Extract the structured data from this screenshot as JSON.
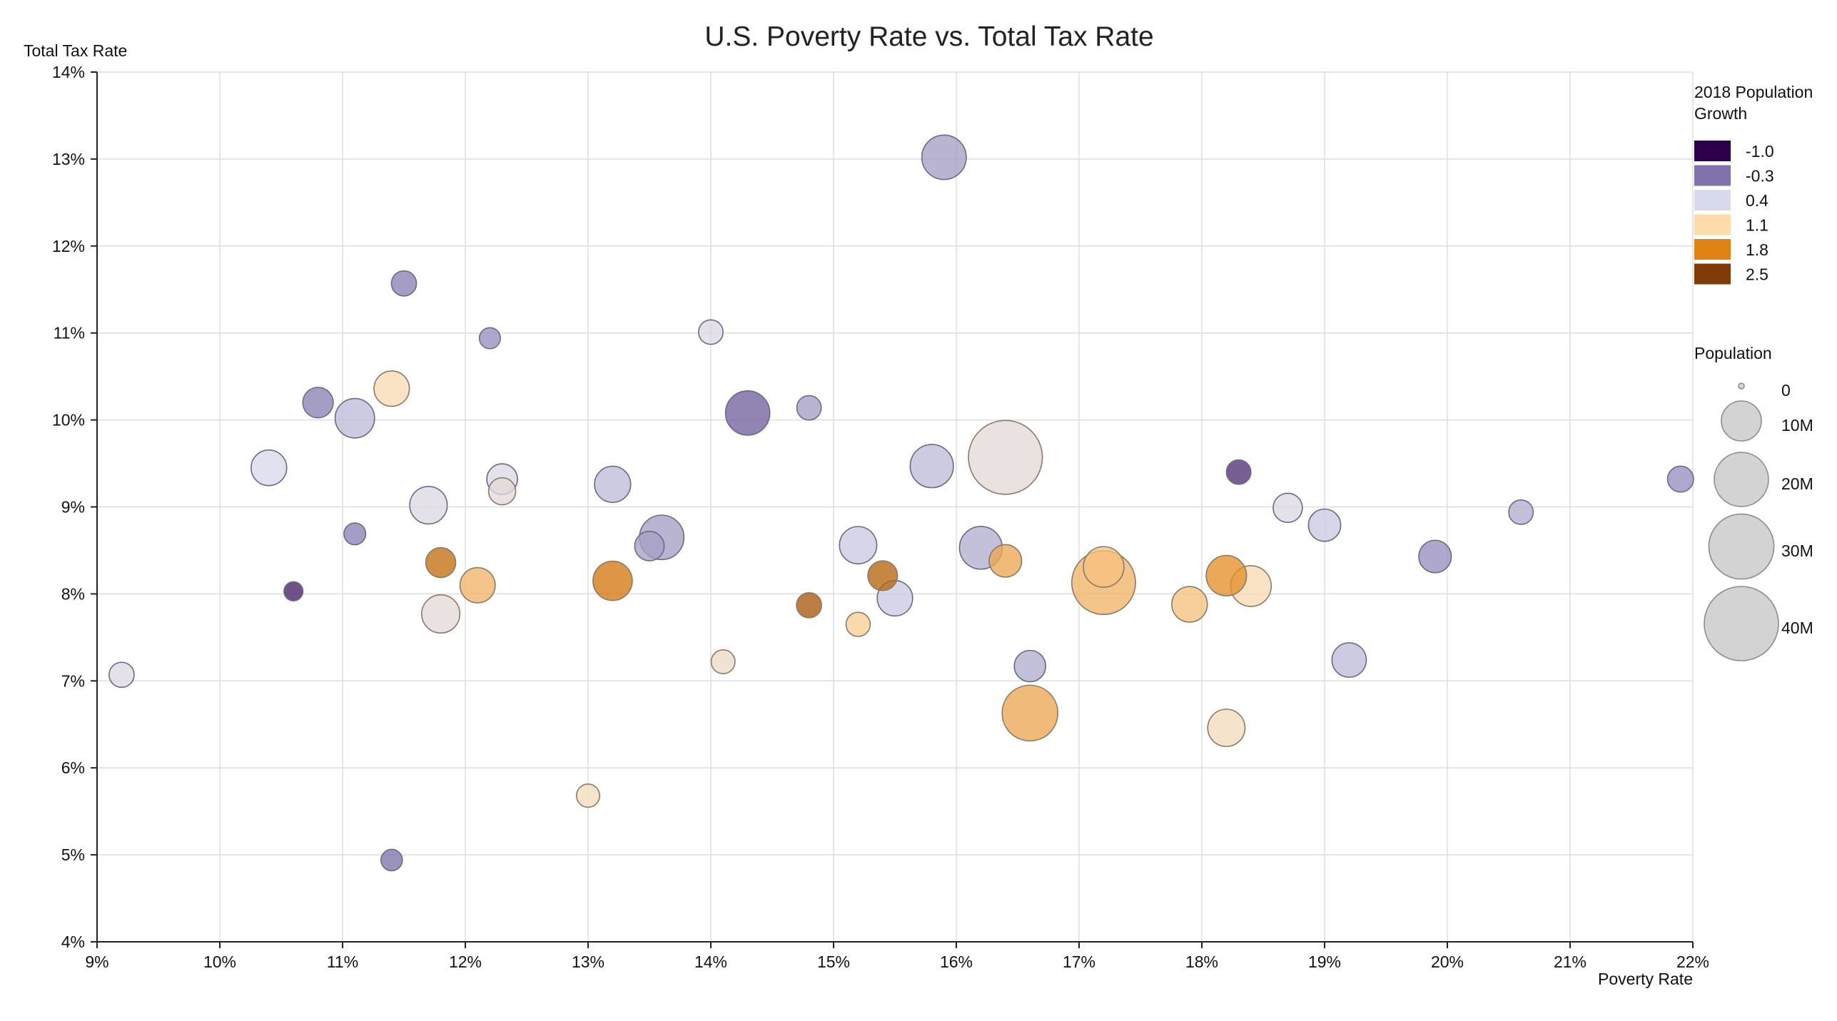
{
  "chart_data": {
    "type": "scatter",
    "title": "U.S. Poverty Rate vs. Total Tax Rate",
    "xlabel": "Poverty Rate",
    "ylabel": "Total Tax Rate",
    "xlim": [
      9,
      22
    ],
    "ylim": [
      4,
      14
    ],
    "x_ticks": [
      "9%",
      "10%",
      "11%",
      "12%",
      "13%",
      "14%",
      "15%",
      "16%",
      "17%",
      "18%",
      "19%",
      "20%",
      "21%",
      "22%"
    ],
    "y_ticks": [
      "4%",
      "5%",
      "6%",
      "7%",
      "8%",
      "9%",
      "10%",
      "11%",
      "12%",
      "13%",
      "14%"
    ],
    "grid": true,
    "color_legend": {
      "title": "2018 Population Growth",
      "items": [
        {
          "label": "-1.0",
          "color": "#2d004b"
        },
        {
          "label": "-0.3",
          "color": "#8073ac"
        },
        {
          "label": "0.4",
          "color": "#d8daeb"
        },
        {
          "label": "1.1",
          "color": "#fddbaa"
        },
        {
          "label": "1.8",
          "color": "#e08214"
        },
        {
          "label": "2.5",
          "color": "#7f3b08"
        }
      ]
    },
    "size_legend": {
      "title": "Population",
      "items": [
        {
          "label": "0",
          "value": 0
        },
        {
          "label": "10M",
          "value": 10
        },
        {
          "label": "20M",
          "value": 20
        },
        {
          "label": "30M",
          "value": 30
        },
        {
          "label": "40M",
          "value": 40
        }
      ]
    },
    "points": [
      {
        "x": 15.9,
        "y": 13.02,
        "pop": 12.8,
        "growth": 0.0
      },
      {
        "x": 11.5,
        "y": 11.57,
        "pop": 3.2,
        "growth": -0.2
      },
      {
        "x": 12.2,
        "y": 10.94,
        "pop": 2.0,
        "growth": -0.1
      },
      {
        "x": 14.0,
        "y": 11.01,
        "pop": 3.0,
        "growth": 0.5
      },
      {
        "x": 11.4,
        "y": 10.36,
        "pop": 7.5,
        "growth": 1.0
      },
      {
        "x": 10.8,
        "y": 10.2,
        "pop": 5.2,
        "growth": -0.2
      },
      {
        "x": 11.1,
        "y": 10.02,
        "pop": 9.7,
        "growth": 0.2
      },
      {
        "x": 14.3,
        "y": 10.08,
        "pop": 12.7,
        "growth": -0.4
      },
      {
        "x": 14.8,
        "y": 10.14,
        "pop": 3.0,
        "growth": 0.0
      },
      {
        "x": 16.4,
        "y": 9.57,
        "pop": 39.6,
        "growth": 0.6
      },
      {
        "x": 15.8,
        "y": 9.47,
        "pop": 12.0,
        "growth": 0.2
      },
      {
        "x": 10.4,
        "y": 9.45,
        "pop": 7.6,
        "growth": 0.4
      },
      {
        "x": 12.3,
        "y": 9.32,
        "pop": 5.3,
        "growth": 0.5
      },
      {
        "x": 12.3,
        "y": 9.18,
        "pop": 3.9,
        "growth": 0.6
      },
      {
        "x": 13.2,
        "y": 9.26,
        "pop": 7.9,
        "growth": 0.2
      },
      {
        "x": 11.7,
        "y": 9.02,
        "pop": 8.6,
        "growth": 0.5
      },
      {
        "x": 18.3,
        "y": 9.4,
        "pop": 3.0,
        "growth": -0.7
      },
      {
        "x": 18.7,
        "y": 8.99,
        "pop": 4.7,
        "growth": 0.5
      },
      {
        "x": 19.0,
        "y": 8.79,
        "pop": 6.0,
        "growth": 0.3
      },
      {
        "x": 20.6,
        "y": 8.94,
        "pop": 3.0,
        "growth": 0.1
      },
      {
        "x": 21.9,
        "y": 9.32,
        "pop": 3.5,
        "growth": -0.1
      },
      {
        "x": 11.1,
        "y": 8.69,
        "pop": 2.2,
        "growth": -0.2
      },
      {
        "x": 13.6,
        "y": 8.65,
        "pop": 12.8,
        "growth": 0.0
      },
      {
        "x": 13.5,
        "y": 8.55,
        "pop": 4.8,
        "growth": 0.0
      },
      {
        "x": 15.2,
        "y": 8.56,
        "pop": 8.5,
        "growth": 0.3
      },
      {
        "x": 16.2,
        "y": 8.53,
        "pop": 11.7,
        "growth": 0.1
      },
      {
        "x": 19.9,
        "y": 8.43,
        "pop": 6.1,
        "growth": -0.1
      },
      {
        "x": 10.6,
        "y": 8.03,
        "pop": 1.5,
        "growth": -0.8
      },
      {
        "x": 11.8,
        "y": 8.36,
        "pop": 5.0,
        "growth": 2.0
      },
      {
        "x": 12.1,
        "y": 8.1,
        "pop": 7.4,
        "growth": 1.4
      },
      {
        "x": 13.2,
        "y": 8.15,
        "pop": 9.6,
        "growth": 1.9
      },
      {
        "x": 15.4,
        "y": 8.21,
        "pop": 4.9,
        "growth": 2.1
      },
      {
        "x": 16.4,
        "y": 8.38,
        "pop": 6.1,
        "growth": 1.5
      },
      {
        "x": 17.2,
        "y": 8.31,
        "pop": 10.4,
        "growth": 1.3
      },
      {
        "x": 17.2,
        "y": 8.13,
        "pop": 28.7,
        "growth": 1.4
      },
      {
        "x": 18.2,
        "y": 8.21,
        "pop": 10.2,
        "growth": 1.7
      },
      {
        "x": 18.4,
        "y": 8.09,
        "pop": 10.4,
        "growth": 1.0
      },
      {
        "x": 11.8,
        "y": 7.77,
        "pop": 9.0,
        "growth": 0.6
      },
      {
        "x": 15.5,
        "y": 7.95,
        "pop": 7.5,
        "growth": 0.3
      },
      {
        "x": 14.8,
        "y": 7.87,
        "pop": 3.2,
        "growth": 2.2
      },
      {
        "x": 17.9,
        "y": 7.88,
        "pop": 7.6,
        "growth": 1.3
      },
      {
        "x": 15.2,
        "y": 7.65,
        "pop": 2.9,
        "growth": 1.2
      },
      {
        "x": 9.2,
        "y": 7.07,
        "pop": 3.2,
        "growth": 0.5
      },
      {
        "x": 14.1,
        "y": 7.22,
        "pop": 2.8,
        "growth": 0.8
      },
      {
        "x": 16.6,
        "y": 7.17,
        "pop": 5.6,
        "growth": 0.1
      },
      {
        "x": 19.2,
        "y": 7.24,
        "pop": 7.0,
        "growth": 0.2
      },
      {
        "x": 16.6,
        "y": 6.63,
        "pop": 21.3,
        "growth": 1.5
      },
      {
        "x": 18.2,
        "y": 6.46,
        "pop": 8.5,
        "growth": 0.9
      },
      {
        "x": 13.0,
        "y": 5.68,
        "pop": 2.6,
        "growth": 0.9
      },
      {
        "x": 11.4,
        "y": 4.94,
        "pop": 2.1,
        "growth": -0.3
      }
    ]
  }
}
